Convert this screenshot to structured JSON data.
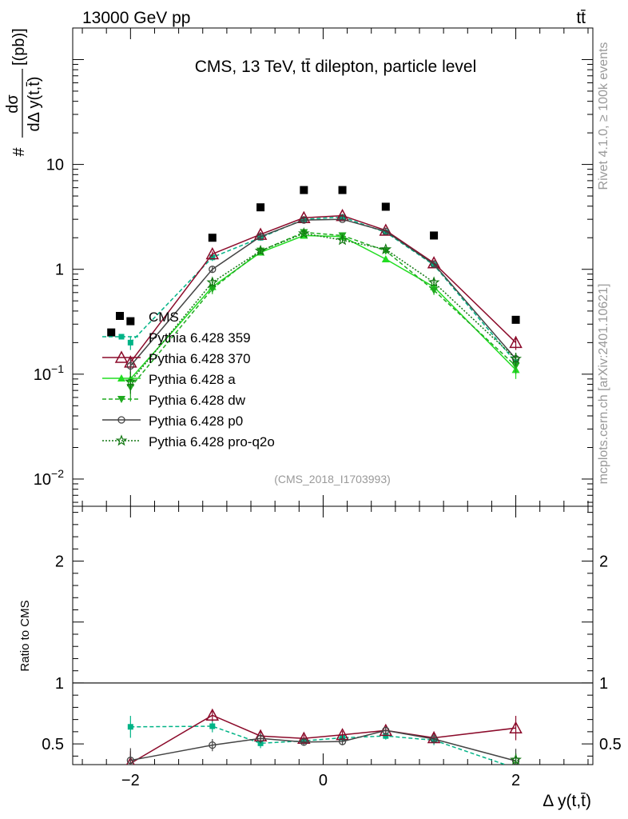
{
  "header": {
    "energy_label": "13000 GeV pp",
    "process_label": "tt̄"
  },
  "side_text": {
    "rivet_label": "Rivet 4.1.0, ≥ 100k events",
    "site_label": "mcplots.cern.ch [arXiv:2401.10621]"
  },
  "chart_data": [
    {
      "type": "scatter",
      "panel": "main",
      "title": "CMS, 13 TeV, tt̄ dilepton, particle level",
      "analysis_label": "(CMS_2018_I1703993)",
      "xlabel": "Δ y(t,t̄)",
      "ylabel": "# dσ/dΔ y(t,t̄) [(pb)]",
      "ylabel_parts": {
        "hash": "#",
        "num": "dσ",
        "den": "dΔ y(t,t̄)",
        "unit": "[(pb)]"
      },
      "yscale": "log",
      "xlim": [
        -2.6,
        2.8
      ],
      "ylim": [
        0.0055,
        200
      ],
      "yticks": [
        {
          "value": 0.01,
          "base": "10",
          "exp": "−2"
        },
        {
          "value": 0.1,
          "base": "10",
          "exp": "−1"
        },
        {
          "value": 1,
          "base": "1",
          "exp": ""
        },
        {
          "value": 10,
          "base": "10",
          "exp": ""
        }
      ],
      "xticks": [
        {
          "value": -2,
          "label": "−2"
        },
        {
          "value": 0,
          "label": "0"
        },
        {
          "value": 2,
          "label": "2"
        }
      ],
      "legend_position": "lower-left",
      "x": [
        -2.0,
        -1.15,
        -0.65,
        -0.2,
        0.2,
        0.65,
        1.15,
        2.0
      ],
      "data": {
        "name": "CMS",
        "x": [
          -2.2,
          -2.0,
          -1.15,
          -0.65,
          -0.2,
          0.2,
          0.65,
          1.15,
          2.0
        ],
        "values": [
          0.25,
          0.32,
          2.0,
          3.9,
          5.7,
          5.7,
          3.95,
          2.1,
          0.33
        ]
      },
      "series": [
        {
          "name": "Pythia 6.428 359",
          "color": "#00b386",
          "marker": "square",
          "dash": "5,3",
          "values": [
            0.2,
            1.3,
            2.0,
            3.0,
            3.15,
            2.25,
            1.1,
            0.13
          ],
          "errors": [
            0.03,
            0.1,
            0.12,
            0.12,
            0.12,
            0.1,
            0.07,
            0.02
          ]
        },
        {
          "name": "Pythia 6.428 370",
          "color": "#8b0a2a",
          "marker": "triangle-open",
          "dash": "",
          "values": [
            0.13,
            1.4,
            2.15,
            3.1,
            3.25,
            2.35,
            1.15,
            0.2
          ],
          "errors": [
            0.02,
            0.08,
            0.12,
            0.12,
            0.12,
            0.1,
            0.07,
            0.03
          ]
        },
        {
          "name": "Pythia 6.428 a",
          "color": "#22dd22",
          "marker": "triangle",
          "dash": "",
          "values": [
            0.09,
            0.68,
            1.45,
            2.1,
            2.05,
            1.25,
            0.68,
            0.11
          ],
          "errors": [
            0.02,
            0.07,
            0.1,
            0.1,
            0.1,
            0.08,
            0.06,
            0.02
          ]
        },
        {
          "name": "Pythia 6.428 dw",
          "color": "#1faa1f",
          "marker": "triangle-down",
          "dash": "5,3",
          "values": [
            0.075,
            0.65,
            1.5,
            2.25,
            2.1,
            1.5,
            0.63,
            0.12
          ],
          "errors": [
            0.02,
            0.07,
            0.1,
            0.1,
            0.1,
            0.08,
            0.06,
            0.02
          ]
        },
        {
          "name": "Pythia 6.428 p0",
          "color": "#444444",
          "marker": "circle-open",
          "dash": "",
          "values": [
            0.12,
            1.0,
            2.05,
            2.95,
            3.0,
            2.3,
            1.12,
            0.14
          ],
          "errors": [
            0.02,
            0.07,
            0.1,
            0.12,
            0.12,
            0.1,
            0.07,
            0.02
          ]
        },
        {
          "name": "Pythia 6.428 pro-q2o",
          "color": "#117711",
          "marker": "star",
          "dash": "2,2",
          "values": [
            0.085,
            0.75,
            1.5,
            2.2,
            1.9,
            1.55,
            0.75,
            0.14
          ],
          "errors": [
            0.02,
            0.07,
            0.1,
            0.1,
            0.1,
            0.08,
            0.06,
            0.02
          ]
        }
      ]
    },
    {
      "type": "line",
      "panel": "ratio",
      "ylabel": "Ratio to CMS",
      "ylim": [
        0.33,
        2.45
      ],
      "reference_line": 1,
      "yticks": [
        {
          "value": 0.5,
          "label": "0.5"
        },
        {
          "value": 1,
          "label": "1"
        },
        {
          "value": 2,
          "label": "2"
        }
      ],
      "x": [
        -2.0,
        -1.15,
        -0.65,
        -0.2,
        0.2,
        0.65,
        1.15,
        2.0
      ],
      "series": [
        {
          "name": "Pythia 6.428 359",
          "color": "#00b386",
          "marker": "square",
          "dash": "5,3",
          "values": [
            0.64,
            0.645,
            0.505,
            0.525,
            0.55,
            0.565,
            0.53,
            0.3
          ],
          "errors": [
            0.09,
            0.05,
            0.04,
            0.03,
            0.03,
            0.03,
            0.04,
            0.08
          ]
        },
        {
          "name": "Pythia 6.428 370",
          "color": "#8b0a2a",
          "marker": "triangle-open",
          "dash": "",
          "values": [
            0.34,
            0.735,
            0.565,
            0.545,
            0.575,
            0.61,
            0.55,
            0.63
          ],
          "errors": [
            0.1,
            0.05,
            0.04,
            0.03,
            0.03,
            0.03,
            0.04,
            0.1
          ]
        },
        {
          "name": "Pythia 6.428 p0",
          "color": "#444444",
          "marker": "circle-open",
          "dash": "",
          "values": [
            0.365,
            0.49,
            0.545,
            0.515,
            0.52,
            0.61,
            0.54,
            0.36
          ],
          "errors": [
            0.1,
            0.05,
            0.04,
            0.03,
            0.03,
            0.03,
            0.04,
            0.1
          ]
        },
        {
          "name": "Pythia 6.428 pro-q2o",
          "color": "#117711",
          "marker": "star",
          "dash": "2,2",
          "values": [
            null,
            null,
            null,
            null,
            null,
            null,
            null,
            0.37
          ],
          "errors": [
            0,
            0,
            0,
            0,
            0,
            0,
            0,
            0.05
          ]
        }
      ]
    }
  ]
}
